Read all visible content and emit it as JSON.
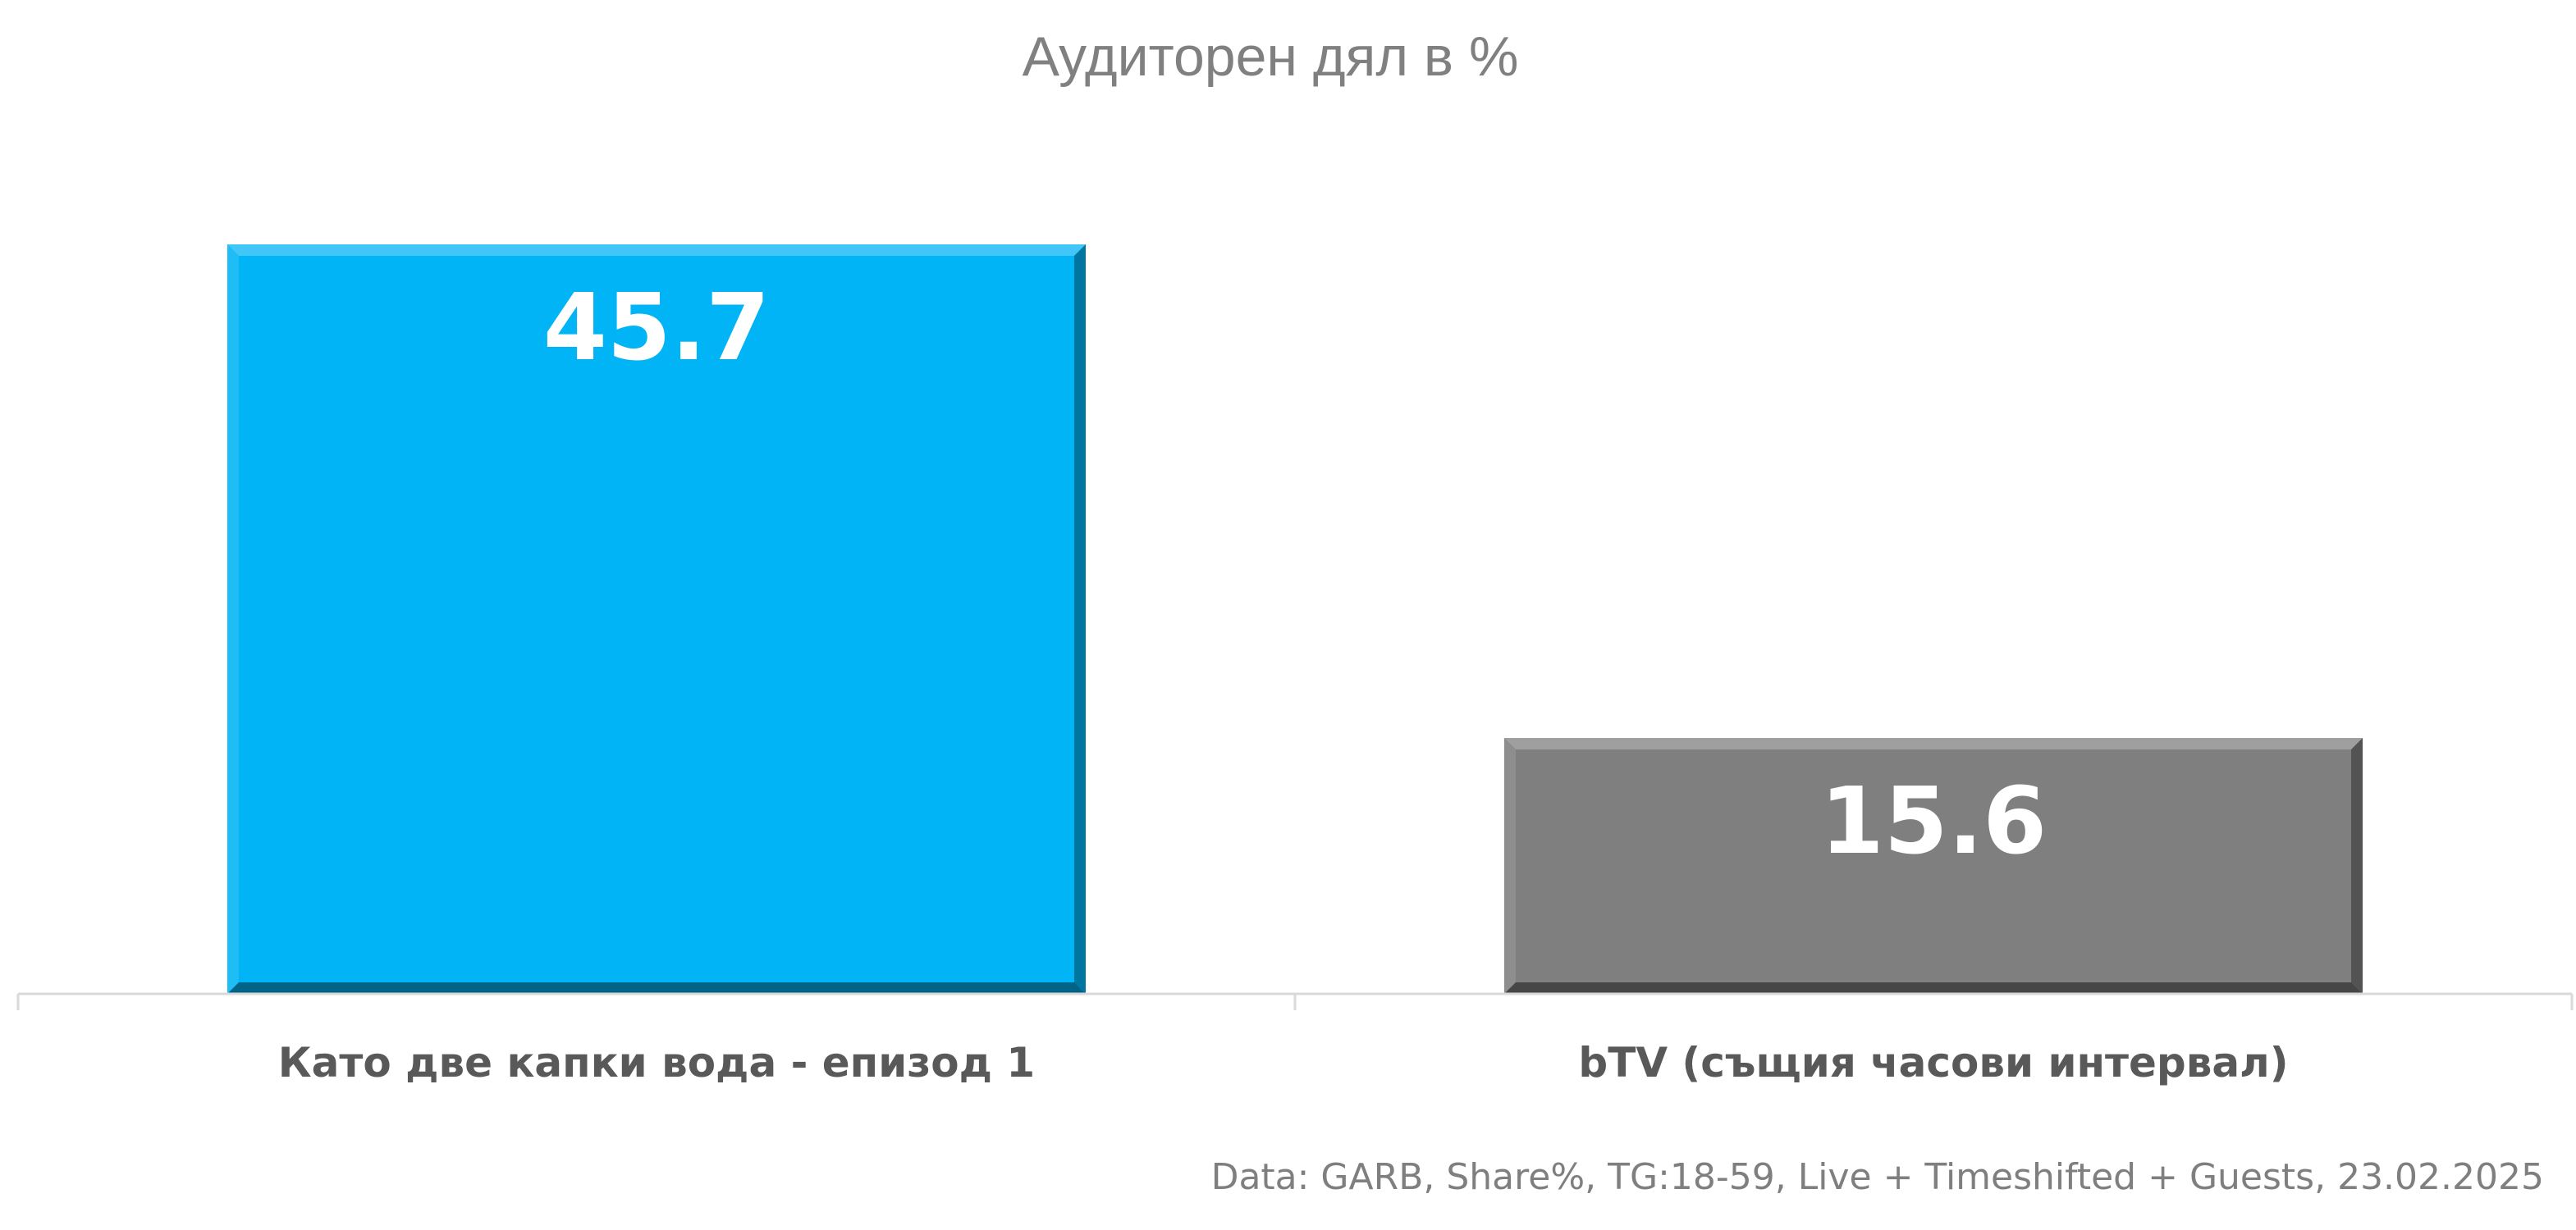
{
  "chart_data": {
    "type": "bar",
    "title": "Аудиторен дял в %",
    "categories": [
      "Като две капки вода - епизод 1",
      "bTV (същия часови интервал)"
    ],
    "values": [
      45.7,
      15.6
    ],
    "data_labels": [
      "45.7",
      "15.6"
    ],
    "colors": [
      "#00B4F5",
      "#7F7F7F"
    ],
    "xlabel": "",
    "ylabel": "",
    "ylim": [
      0,
      50
    ],
    "grid": false,
    "legend": "none",
    "source_note": "Data: GARB, Share%, TG:18-59, Live + Timeshifted + Guests, 23.02.2025"
  }
}
